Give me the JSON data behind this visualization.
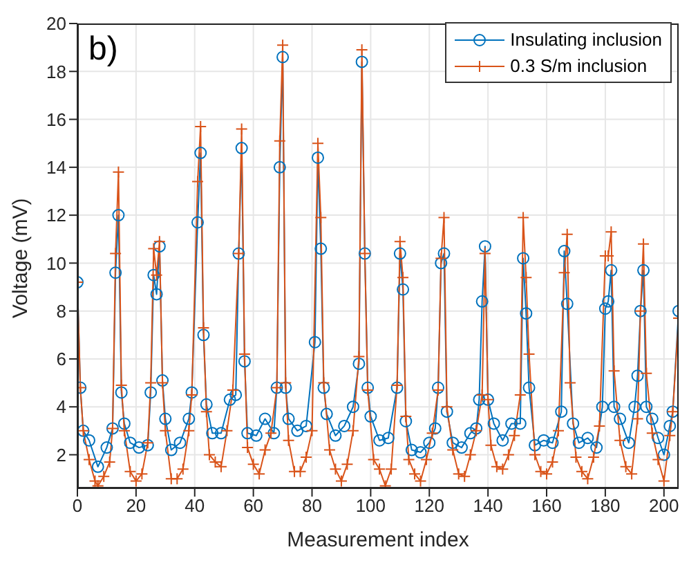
{
  "chart_data": {
    "type": "line",
    "annotations": [
      "b)"
    ],
    "xlabel": "Measurement index",
    "ylabel": "Voltage (mV)",
    "xlim": [
      0,
      205
    ],
    "xticks": [
      0,
      20,
      40,
      60,
      80,
      100,
      120,
      140,
      160,
      180,
      200
    ],
    "ylim": [
      0.6,
      20
    ],
    "yticks": [
      2,
      4,
      6,
      8,
      10,
      12,
      14,
      16,
      18,
      20
    ],
    "grid": true,
    "legend": "top right",
    "series": [
      {
        "name": "Insulating inclusion",
        "color": "#0072bd",
        "marker": "circle",
        "x": [
          0,
          1,
          2,
          4,
          7,
          10,
          12,
          13,
          14,
          15,
          16,
          18,
          21,
          24,
          25,
          26,
          27,
          28,
          29,
          30,
          32,
          35,
          38,
          39,
          41,
          42,
          43,
          44,
          46,
          49,
          52,
          54,
          55,
          56,
          57,
          58,
          61,
          64,
          67,
          68,
          69,
          70,
          71,
          72,
          75,
          78,
          81,
          82,
          83,
          84,
          85,
          88,
          91,
          94,
          96,
          97,
          98,
          99,
          100,
          103,
          106,
          109,
          110,
          111,
          112,
          114,
          117,
          120,
          122,
          123,
          124,
          125,
          126,
          128,
          131,
          134,
          136,
          137,
          138,
          139,
          140,
          142,
          145,
          148,
          151,
          152,
          153,
          154,
          156,
          159,
          162,
          165,
          166,
          167,
          169,
          171,
          174,
          177,
          179,
          180,
          181,
          182,
          183,
          185,
          188,
          190,
          191,
          192,
          193,
          194,
          196,
          198,
          200,
          202,
          203,
          205
        ],
        "values": [
          9.2,
          4.8,
          3.0,
          2.6,
          1.5,
          2.3,
          3.1,
          9.6,
          12.0,
          4.6,
          3.3,
          2.5,
          2.3,
          2.4,
          4.6,
          9.5,
          8.7,
          10.7,
          5.1,
          3.5,
          2.2,
          2.5,
          3.5,
          4.6,
          11.7,
          14.6,
          7.0,
          4.1,
          2.9,
          2.9,
          4.3,
          4.5,
          10.4,
          14.8,
          5.9,
          2.9,
          2.8,
          3.5,
          2.9,
          4.8,
          14.0,
          18.6,
          4.8,
          3.5,
          3.0,
          3.2,
          6.7,
          14.4,
          10.6,
          4.8,
          3.7,
          2.8,
          3.2,
          4.0,
          5.8,
          18.4,
          10.4,
          4.8,
          3.6,
          2.6,
          2.7,
          4.8,
          10.4,
          8.9,
          3.4,
          2.2,
          2.1,
          2.5,
          3.1,
          4.8,
          10.0,
          10.4,
          3.8,
          2.5,
          2.3,
          2.9,
          3.1,
          4.3,
          8.4,
          10.7,
          4.3,
          3.3,
          2.6,
          3.3,
          3.3,
          10.2,
          7.9,
          4.8,
          2.4,
          2.6,
          2.5,
          3.8,
          10.5,
          8.3,
          3.3,
          2.5,
          2.7,
          2.3,
          4.0,
          8.1,
          8.4,
          9.7,
          4.0,
          3.5,
          2.5,
          4.0,
          5.3,
          8.0,
          9.7,
          4.0,
          3.5,
          2.7,
          2.0,
          3.2,
          3.8,
          8.0
        ]
      },
      {
        "name": "0.3 S/m inclusion",
        "color": "#d95319",
        "marker": "cross",
        "x": [
          0,
          1,
          2,
          4,
          6,
          7,
          9,
          11,
          12,
          13,
          14,
          15,
          16,
          18,
          20,
          22,
          24,
          25,
          26,
          27,
          28,
          29,
          30,
          32,
          34,
          36,
          38,
          39,
          41,
          42,
          43,
          44,
          45,
          47,
          49,
          51,
          53,
          55,
          56,
          57,
          58,
          60,
          62,
          64,
          66,
          68,
          69,
          70,
          71,
          72,
          74,
          76,
          78,
          80,
          82,
          83,
          84,
          86,
          88,
          90,
          92,
          94,
          96,
          97,
          98,
          99,
          101,
          103,
          105,
          107,
          109,
          110,
          111,
          112,
          113,
          115,
          117,
          119,
          121,
          123,
          124,
          125,
          126,
          128,
          130,
          132,
          134,
          136,
          138,
          139,
          140,
          141,
          143,
          145,
          147,
          149,
          151,
          152,
          153,
          154,
          156,
          158,
          160,
          162,
          164,
          166,
          167,
          168,
          170,
          172,
          174,
          176,
          178,
          180,
          181,
          182,
          183,
          185,
          187,
          189,
          191,
          192,
          193,
          194,
          196,
          198,
          200,
          202,
          203,
          205
        ],
        "values": [
          9.2,
          4.8,
          3.0,
          1.8,
          0.9,
          0.7,
          1.1,
          1.7,
          3.1,
          10.4,
          13.8,
          4.9,
          3.0,
          1.3,
          0.9,
          1.2,
          2.5,
          5.0,
          10.6,
          9.5,
          10.9,
          5.0,
          3.0,
          1.0,
          1.0,
          1.4,
          3.0,
          4.5,
          13.4,
          15.7,
          7.3,
          3.8,
          2.0,
          1.7,
          1.5,
          3.0,
          4.7,
          10.4,
          15.6,
          6.2,
          2.3,
          1.6,
          1.2,
          2.2,
          2.9,
          4.8,
          15.1,
          19.1,
          5.0,
          2.6,
          1.3,
          1.3,
          1.9,
          3.0,
          15.0,
          11.9,
          5.0,
          2.2,
          1.4,
          0.9,
          1.6,
          3.0,
          6.1,
          18.9,
          10.4,
          4.7,
          1.8,
          1.4,
          0.7,
          1.4,
          4.9,
          10.9,
          9.4,
          3.6,
          1.8,
          1.2,
          0.9,
          1.8,
          2.9,
          4.7,
          10.2,
          11.9,
          4.0,
          2.2,
          1.2,
          1.1,
          2.0,
          3.0,
          4.5,
          10.4,
          4.3,
          2.4,
          1.5,
          1.4,
          2.0,
          2.8,
          4.5,
          11.9,
          9.4,
          6.2,
          2.0,
          1.3,
          1.2,
          1.7,
          3.0,
          9.6,
          11.2,
          5.0,
          1.9,
          1.3,
          1.0,
          1.9,
          3.2,
          10.3,
          10.3,
          11.3,
          5.5,
          2.6,
          1.5,
          1.2,
          3.5,
          8.0,
          10.8,
          5.4,
          2.9,
          1.8,
          0.9,
          2.8,
          3.8,
          7.7
        ]
      }
    ]
  }
}
